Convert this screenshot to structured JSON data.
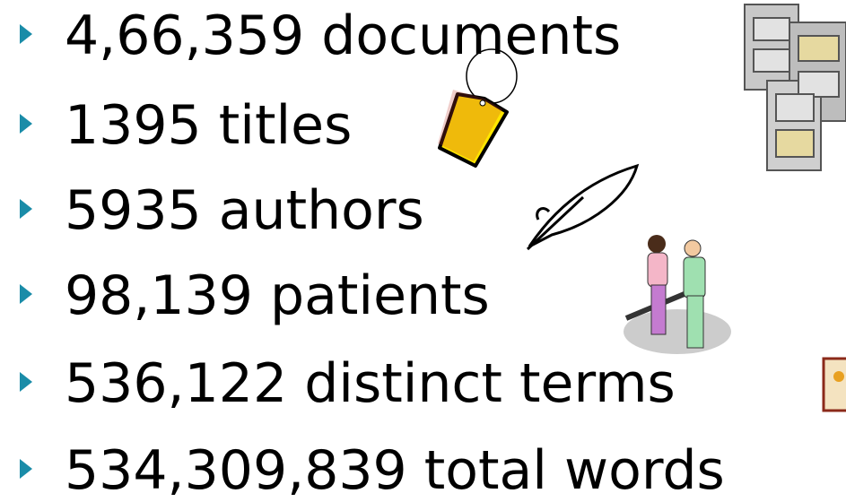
{
  "items": [
    "4,66,359 documents",
    "1395 titles",
    "5935 authors",
    "98,139 patients",
    "536,122 distinct terms",
    "534,309,839 total words"
  ]
}
